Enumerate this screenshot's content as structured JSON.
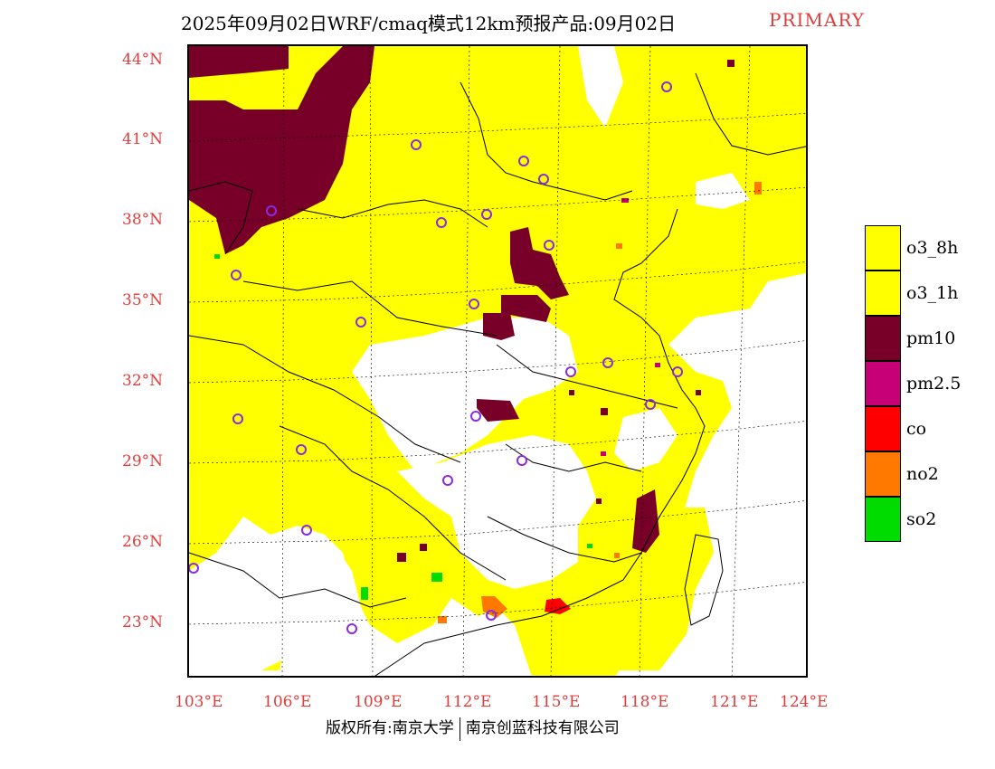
{
  "header": {
    "title": "2025年09月02日WRF/cmaq模式12km预报产品:09月02日",
    "tag": "PRIMARY"
  },
  "axes": {
    "lat_labels": [
      "44°N",
      "41°N",
      "38°N",
      "35°N",
      "32°N",
      "29°N",
      "26°N",
      "23°N"
    ],
    "lon_labels": [
      "103°E",
      "106°E",
      "109°E",
      "112°E",
      "115°E",
      "118°E",
      "121°E",
      "124°E"
    ]
  },
  "legend": {
    "items": [
      {
        "label": "o3_8h",
        "color": "#ffff00"
      },
      {
        "label": "o3_1h",
        "color": "#ffff00"
      },
      {
        "label": "pm10",
        "color": "#780028"
      },
      {
        "label": "pm2.5",
        "color": "#c80078"
      },
      {
        "label": "co",
        "color": "#ff0000"
      },
      {
        "label": "no2",
        "color": "#ff7800"
      },
      {
        "label": "so2",
        "color": "#00dc00"
      }
    ]
  },
  "copyright": {
    "left": "版权所有:南京大学",
    "right": "南京创蓝科技有限公司"
  },
  "colors": {
    "o3": "#ffff00",
    "pm10": "#780028",
    "pm25": "#c80078",
    "co": "#ff0000",
    "no2": "#ff7800",
    "so2": "#00dc00",
    "station": "#8a2be2",
    "label": "#e03c3c"
  }
}
